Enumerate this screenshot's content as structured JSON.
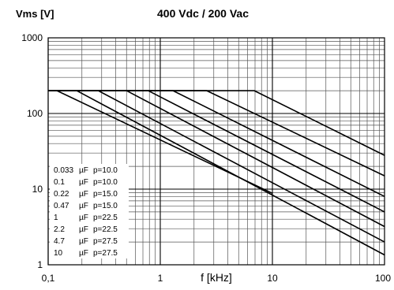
{
  "chart_data": {
    "type": "line",
    "title": "400 Vdc / 200 Vac",
    "ylabel": "Vms [V]",
    "xlabel": "f [kHz]",
    "x_scale": "log",
    "y_scale": "log",
    "xlim": [
      0.1,
      100
    ],
    "ylim": [
      1,
      1000
    ],
    "x_ticks": [
      {
        "value": 0.1,
        "label": "0,1"
      },
      {
        "value": 1,
        "label": "1"
      },
      {
        "value": 10,
        "label": "10"
      },
      {
        "value": 100,
        "label": "100"
      }
    ],
    "y_ticks": [
      {
        "value": 1,
        "label": "1"
      },
      {
        "value": 10,
        "label": "10"
      },
      {
        "value": 100,
        "label": "100"
      },
      {
        "value": 1000,
        "label": "1000"
      }
    ],
    "grid": true,
    "legend_position": "bottom-left",
    "series": [
      {
        "name": "0.033",
        "unit": "µF",
        "pitch": "p=10.0",
        "x": [
          0.1,
          6.9,
          100
        ],
        "y": [
          200,
          200,
          28
        ]
      },
      {
        "name": "0.1",
        "unit": "µF",
        "pitch": "p=10.0",
        "x": [
          0.1,
          2.6,
          100
        ],
        "y": [
          200,
          200,
          15
        ]
      },
      {
        "name": "0.22",
        "unit": "µF",
        "pitch": "p=15.0",
        "x": [
          0.1,
          1.3,
          100
        ],
        "y": [
          200,
          200,
          8
        ]
      },
      {
        "name": "0.47",
        "unit": "µF",
        "pitch": "p=15.0",
        "x": [
          0.1,
          0.78,
          100
        ],
        "y": [
          200,
          200,
          5
        ]
      },
      {
        "name": "1",
        "unit": "µF",
        "pitch": "p=22.5",
        "x": [
          0.1,
          0.5,
          100
        ],
        "y": [
          200,
          200,
          3.2
        ]
      },
      {
        "name": "2.2",
        "unit": "µF",
        "pitch": "p=22.5",
        "x": [
          0.1,
          0.28,
          100
        ],
        "y": [
          200,
          200,
          2
        ]
      },
      {
        "name": "4.7",
        "unit": "µF",
        "pitch": "p=27.5",
        "x": [
          0.1,
          0.18,
          100
        ],
        "y": [
          200,
          200,
          1.35
        ]
      },
      {
        "name": "10",
        "unit": "µF",
        "pitch": "p=27.5",
        "x": [
          0.1,
          0.12,
          10
        ],
        "y": [
          200,
          200,
          8.8
        ]
      }
    ]
  }
}
